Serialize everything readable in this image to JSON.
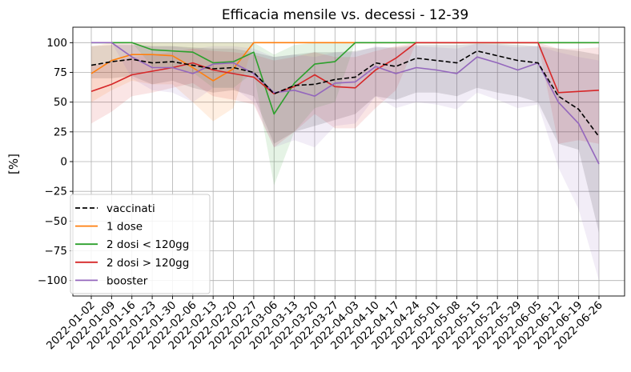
{
  "chart_data": {
    "type": "line",
    "title": "Efficacia mensile vs. decessi - 12-39",
    "xlabel": "",
    "ylabel": "[%]",
    "ylim": [
      -113,
      113
    ],
    "yticks": [
      -100,
      -75,
      -50,
      -25,
      0,
      25,
      50,
      75,
      100
    ],
    "ytick_labels": [
      "−100",
      "−75",
      "−50",
      "−25",
      "0",
      "25",
      "50",
      "75",
      "100"
    ],
    "grid": true,
    "legend_position": "bottom-left",
    "categories": [
      "2022-01-02",
      "2022-01-09",
      "2022-01-16",
      "2022-01-23",
      "2022-01-30",
      "2022-02-06",
      "2022-02-13",
      "2022-02-20",
      "2022-02-27",
      "2022-03-06",
      "2022-03-13",
      "2022-03-20",
      "2022-03-27",
      "2022-04-03",
      "2022-04-10",
      "2022-04-17",
      "2022-04-24",
      "2022-05-01",
      "2022-05-08",
      "2022-05-15",
      "2022-05-22",
      "2022-05-29",
      "2022-06-05",
      "2022-06-12",
      "2022-06-19",
      "2022-06-26"
    ],
    "series": [
      {
        "name": "vaccinati",
        "color": "#000000",
        "dashed": true,
        "values": [
          81,
          84,
          86,
          83,
          84,
          81,
          78,
          79,
          75,
          57,
          64,
          65,
          69,
          71,
          83,
          80,
          87,
          85,
          83,
          93,
          89,
          85,
          83,
          55,
          44,
          21
        ],
        "lower": [
          70,
          70,
          72,
          65,
          68,
          62,
          58,
          60,
          55,
          15,
          25,
          30,
          35,
          40,
          55,
          52,
          58,
          58,
          55,
          62,
          58,
          55,
          50,
          15,
          10,
          -60
        ],
        "upper": [
          97,
          98,
          98,
          97,
          97,
          96,
          95,
          95,
          92,
          88,
          90,
          92,
          92,
          93,
          96,
          96,
          98,
          98,
          98,
          99,
          99,
          98,
          97,
          95,
          93,
          90
        ]
      },
      {
        "name": "1 dose",
        "color": "#ff7f0e",
        "dashed": false,
        "values": [
          74,
          85,
          90,
          90,
          89,
          79,
          68,
          78,
          100,
          100,
          100,
          100,
          100,
          100,
          100,
          100,
          100,
          100,
          100,
          100,
          100,
          100,
          100,
          100,
          100,
          100
        ],
        "lower": [
          50,
          60,
          68,
          65,
          65,
          50,
          34,
          45,
          100,
          100,
          100,
          100,
          100,
          100,
          100,
          100,
          100,
          100,
          100,
          100,
          100,
          100,
          100,
          100,
          100,
          100
        ],
        "upper": [
          97,
          100,
          100,
          100,
          100,
          100,
          100,
          100,
          100,
          100,
          100,
          100,
          100,
          100,
          100,
          100,
          100,
          100,
          100,
          100,
          100,
          100,
          100,
          100,
          100,
          100
        ]
      },
      {
        "name": "2 dosi < 120gg",
        "color": "#2ca02c",
        "dashed": false,
        "values": [
          100,
          100,
          100,
          94,
          93,
          92,
          83,
          84,
          92,
          40,
          66,
          82,
          84,
          100,
          100,
          100,
          100,
          100,
          100,
          100,
          100,
          100,
          100,
          100,
          100,
          100
        ],
        "lower": [
          100,
          100,
          100,
          80,
          78,
          75,
          62,
          62,
          75,
          -20,
          25,
          45,
          50,
          100,
          100,
          100,
          100,
          100,
          100,
          100,
          100,
          100,
          100,
          100,
          100,
          100
        ],
        "upper": [
          100,
          100,
          100,
          100,
          100,
          100,
          100,
          100,
          100,
          90,
          98,
          100,
          100,
          100,
          100,
          100,
          100,
          100,
          100,
          100,
          100,
          100,
          100,
          100,
          100,
          100
        ]
      },
      {
        "name": "2 dosi > 120gg",
        "color": "#d62728",
        "dashed": false,
        "values": [
          59,
          65,
          73,
          76,
          79,
          83,
          77,
          74,
          71,
          57,
          63,
          73,
          63,
          62,
          77,
          87,
          100,
          100,
          100,
          100,
          100,
          100,
          100,
          58,
          59,
          60
        ],
        "lower": [
          32,
          42,
          55,
          58,
          62,
          66,
          55,
          52,
          48,
          12,
          25,
          40,
          28,
          28,
          45,
          60,
          100,
          100,
          100,
          100,
          100,
          100,
          100,
          15,
          18,
          15
        ],
        "upper": [
          80,
          84,
          88,
          90,
          92,
          95,
          93,
          92,
          90,
          85,
          88,
          92,
          88,
          88,
          93,
          97,
          100,
          100,
          100,
          100,
          100,
          100,
          100,
          95,
          95,
          96
        ]
      },
      {
        "name": "booster",
        "color": "#9467bd",
        "dashed": false,
        "values": [
          100,
          100,
          88,
          79,
          79,
          74,
          82,
          83,
          74,
          58,
          60,
          55,
          66,
          67,
          80,
          74,
          79,
          77,
          74,
          88,
          83,
          77,
          83,
          50,
          32,
          -2
        ],
        "lower": [
          100,
          100,
          70,
          60,
          58,
          50,
          62,
          62,
          50,
          12,
          18,
          12,
          30,
          32,
          55,
          45,
          50,
          48,
          44,
          58,
          52,
          45,
          48,
          -5,
          -40,
          -100
        ],
        "upper": [
          100,
          100,
          99,
          97,
          97,
          95,
          97,
          97,
          95,
          88,
          90,
          88,
          92,
          92,
          97,
          95,
          97,
          96,
          95,
          99,
          98,
          96,
          97,
          92,
          88,
          85
        ]
      }
    ],
    "legend": [
      "vaccinati",
      "1 dose",
      "2 dosi < 120gg",
      "2 dosi > 120gg",
      "booster"
    ]
  }
}
